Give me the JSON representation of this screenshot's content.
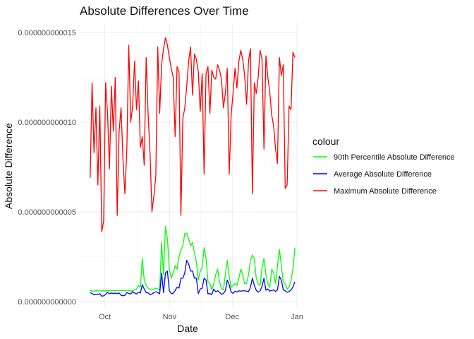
{
  "chart_data": {
    "type": "line",
    "title": "Absolute Differences Over Time",
    "xlabel": "Date",
    "ylabel": "Absolute Difference",
    "x_ticks": [
      {
        "label": "Oct",
        "date": "2023-10-01"
      },
      {
        "label": "Nov",
        "date": "2023-11-01"
      },
      {
        "label": "Dec",
        "date": "2023-12-01"
      },
      {
        "label": "Jan",
        "date": "2024-01-01"
      }
    ],
    "y_ticks": [
      {
        "label": "0.000000000000",
        "value": 0
      },
      {
        "label": "0.000000000005",
        "value": 5e-12
      },
      {
        "label": "0.000000000010",
        "value": 1e-11
      },
      {
        "label": "0.000000000015",
        "value": 1.5e-11
      }
    ],
    "xlim": [
      "2023-09-19",
      "2024-01-01"
    ],
    "ylim": [
      0,
      1.5e-11
    ],
    "grid": true,
    "legend": {
      "title": "colour",
      "position": "right"
    },
    "x_start": "2023-09-24",
    "x_end": "2023-12-31",
    "series": [
      {
        "name": "90th Percentile Absolute Difference",
        "color": "#00ff00",
        "values": [
          6.2e-13,
          6e-13,
          5.8e-13,
          6.1e-13,
          6e-13,
          5.9e-13,
          6e-13,
          6.1e-13,
          5.8e-13,
          6.2e-13,
          6e-13,
          6.3e-13,
          6.1e-13,
          6.2e-13,
          6e-13,
          6.3e-13,
          6.1e-13,
          6.2e-13,
          6.1e-13,
          6.3e-13,
          6.2e-13,
          5.8e-13,
          6e-13,
          6.5e-13,
          6.9e-13,
          9e-13,
          8e-13,
          2.4e-12,
          1.2e-12,
          9e-13,
          7.5e-13,
          7e-13,
          6.5e-13,
          6.8e-13,
          7.5e-13,
          7e-13,
          6.5e-13,
          3.3e-12,
          1.5e-12,
          4.2e-12,
          3.5e-12,
          1.8e-12,
          1.3e-12,
          1.6e-12,
          2e-12,
          1.8e-12,
          2.5e-12,
          2.9e-12,
          3.1e-12,
          3.8e-12,
          3.8e-12,
          3.5e-12,
          3.1e-12,
          3.3e-12,
          2.7e-12,
          2.2e-12,
          1.2e-12,
          1.7e-12,
          1.9e-12,
          3e-12,
          2.4e-12,
          1.1e-12,
          1e-12,
          6.5e-13,
          1e-12,
          1.5e-12,
          1.8e-12,
          1.1e-12,
          7e-13,
          6.5e-13,
          1.5e-12,
          2.3e-12,
          1.4e-12,
          8e-13,
          9e-13,
          1e-12,
          9e-13,
          1.3e-12,
          1.8e-12,
          1.5e-12,
          1e-12,
          1e-12,
          1.5e-12,
          2.3e-12,
          2.6e-12,
          2.4e-12,
          1.3e-12,
          1e-12,
          9e-13,
          1.9e-12,
          2.4e-12,
          1.5e-12,
          1e-12,
          8e-13,
          1.8e-12,
          1.6e-12,
          1e-12,
          2e-12,
          2.9e-12,
          2e-12,
          1.1e-12,
          1e-12,
          7e-13,
          8e-13,
          1.2e-12,
          1.8e-12,
          3e-12
        ]
      },
      {
        "name": "Average Absolute Difference",
        "color": "#0000ff",
        "values": [
          5e-13,
          4.5e-13,
          3.8e-13,
          4.2e-13,
          4e-13,
          4.4e-13,
          3e-13,
          3.2e-13,
          4e-13,
          5.2e-13,
          4.3e-13,
          4.8e-13,
          4.5e-13,
          4.7e-13,
          4.4e-13,
          4.8e-13,
          3.5e-13,
          3.2e-13,
          3.5e-13,
          5e-13,
          4.5e-13,
          4.2e-13,
          5.5e-13,
          4.8e-13,
          4.2e-13,
          5.3e-13,
          4.8e-13,
          9.5e-13,
          7e-13,
          5e-13,
          4.8e-13,
          3.9e-13,
          4.2e-13,
          5e-13,
          5.5e-13,
          5e-13,
          4.3e-13,
          1.6e-12,
          5e-13,
          1.6e-12,
          1.7e-12,
          6e-13,
          4.5e-13,
          4.5e-13,
          6.2e-13,
          8e-13,
          7.5e-13,
          1.3e-12,
          1.3e-12,
          1.6e-12,
          2.3e-12,
          2.1e-12,
          1.7e-12,
          1.7e-12,
          1.3e-12,
          1.3e-12,
          4.5e-13,
          7e-13,
          7.5e-13,
          1.3e-12,
          1.2e-12,
          4.3e-13,
          4.5e-13,
          3.8e-13,
          7e-13,
          5.5e-13,
          6e-13,
          5.3e-13,
          4e-13,
          4.5e-13,
          6e-13,
          1.2e-12,
          9.5e-13,
          5.3e-13,
          4.6e-13,
          5.8e-13,
          5.3e-13,
          6e-13,
          5.8e-13,
          6e-13,
          6e-13,
          5.8e-13,
          5.5e-13,
          8e-13,
          1.3e-12,
          9e-13,
          6.3e-13,
          5.2e-13,
          6e-13,
          8.5e-13,
          1.3e-12,
          6.3e-13,
          7e-13,
          5.8e-13,
          6.2e-13,
          6.5e-13,
          5.6e-13,
          6.5e-13,
          1.4e-12,
          1.2e-12,
          6.5e-13,
          6e-13,
          5.2e-13,
          5.5e-13,
          6.5e-13,
          8e-13,
          1.1e-12
        ]
      },
      {
        "name": "Maximum Absolute Difference",
        "color": "#ff0000",
        "values": [
          6.9e-12,
          1.22e-11,
          8.3e-12,
          1.08e-11,
          6.5e-12,
          1.09e-11,
          3.9e-12,
          4.5e-12,
          1.22e-11,
          1.05e-11,
          7.4e-12,
          1.2e-11,
          9.5e-12,
          1.25e-11,
          4.8e-12,
          9.5e-12,
          1.08e-11,
          7.9e-12,
          6e-12,
          8.5e-12,
          1.43e-11,
          1e-11,
          1.09e-11,
          1.34e-11,
          1.07e-11,
          1.23e-11,
          8.6e-12,
          9.2e-12,
          7.6e-12,
          1.36e-11,
          1.05e-11,
          8.3e-12,
          5e-12,
          5.9e-12,
          7e-12,
          1.42e-11,
          1.05e-11,
          1.32e-11,
          1.41e-11,
          1.47e-11,
          1.43e-11,
          1.36e-11,
          1.3e-11,
          1.25e-11,
          9.2e-12,
          1.31e-11,
          1.28e-11,
          4.8e-12,
          1.02e-11,
          1.08e-11,
          1.2e-11,
          1.34e-11,
          1.42e-11,
          1.15e-11,
          1.38e-11,
          1.35e-11,
          1.28e-11,
          1.06e-11,
          1.27e-11,
          7.1e-12,
          1.27e-11,
          1.31e-11,
          1.05e-11,
          1.29e-11,
          1.25e-11,
          1.24e-11,
          1.32e-11,
          1.29e-11,
          1.24e-11,
          1.08e-11,
          1.16e-11,
          1.3e-11,
          7.1e-12,
          1.04e-11,
          1.16e-11,
          1.3e-11,
          1.19e-11,
          1.34e-11,
          1.4e-11,
          1.35e-11,
          1.26e-11,
          1.1e-11,
          1.34e-11,
          1.41e-11,
          6e-12,
          1.22e-11,
          1.16e-11,
          1.25e-11,
          1.4e-11,
          1.35e-11,
          8.5e-12,
          1.37e-11,
          1.25e-11,
          1.17e-11,
          1.04e-11,
          9.8e-12,
          8.5e-12,
          7.7e-12,
          1.36e-11,
          1.26e-11,
          1.32e-11,
          6.3e-12,
          6.5e-12,
          1.09e-11,
          1.07e-11,
          1.39e-11,
          1.36e-11
        ]
      }
    ]
  }
}
